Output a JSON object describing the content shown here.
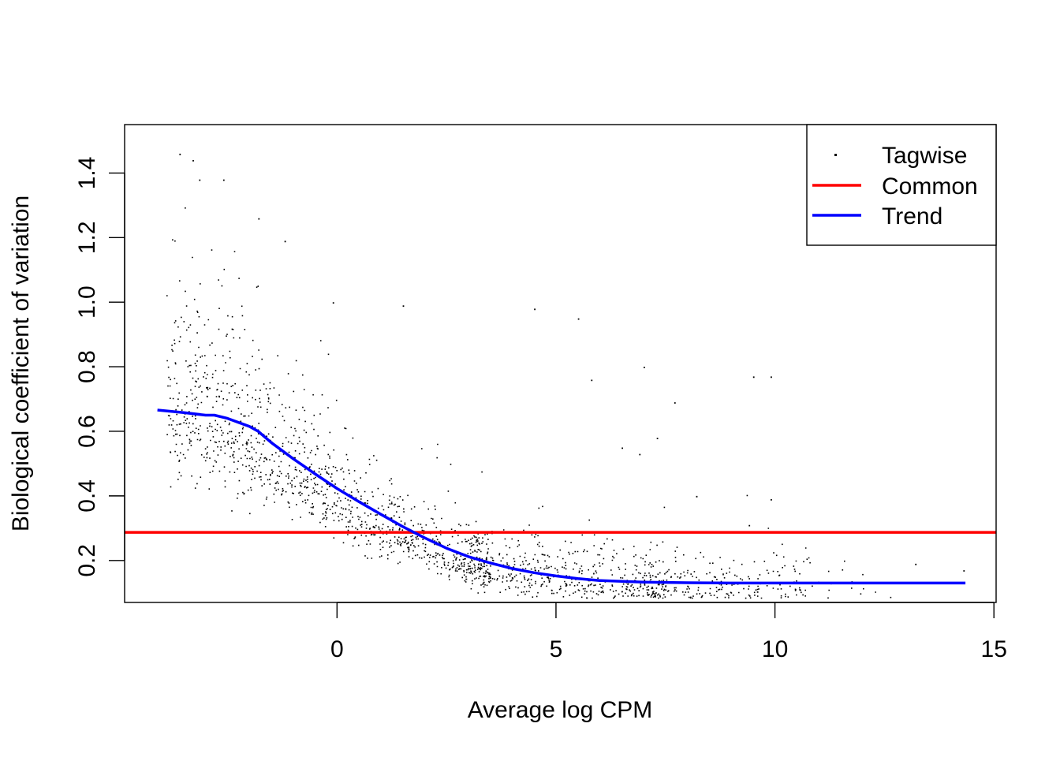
{
  "chart_data": {
    "type": "scatter",
    "title": "",
    "xlabel": "Average log CPM",
    "ylabel": "Biological coefficient of variation",
    "xlim": [
      -4.85,
      15.05
    ],
    "ylim": [
      0.07,
      1.55
    ],
    "x_ticks": [
      0,
      5,
      10,
      15
    ],
    "x_tick_labels": [
      "0",
      "5",
      "10",
      "15"
    ],
    "y_ticks": [
      0.2,
      0.4,
      0.6,
      0.8,
      1.0,
      1.2,
      1.4
    ],
    "y_tick_labels": [
      "0.2",
      "0.4",
      "0.6",
      "0.8",
      "1.0",
      "1.2",
      "1.4"
    ],
    "grid": false,
    "legend": {
      "position": "top-right",
      "entries": [
        {
          "label": "Tagwise",
          "kind": "point",
          "color": "#000000"
        },
        {
          "label": "Common",
          "kind": "line",
          "color": "#ff0000"
        },
        {
          "label": "Trend",
          "kind": "line",
          "color": "#0000ff"
        }
      ]
    },
    "series": [
      {
        "name": "Tagwise",
        "kind": "scatter",
        "color": "#000000",
        "approx_points": 16000,
        "description_values": {
          "x_range": [
            -4.1,
            14.4
          ],
          "center_curve_x": [
            -4.1,
            -3.5,
            -3,
            -2.5,
            -2,
            -1.5,
            -1,
            -0.5,
            0,
            0.5,
            1,
            1.5,
            2,
            2.5,
            3,
            3.5,
            4,
            4.5,
            5,
            5.5,
            6,
            7,
            8,
            9,
            10,
            11,
            12,
            13,
            14.4
          ],
          "center_curve_y": [
            0.66,
            0.65,
            0.62,
            0.59,
            0.55,
            0.5,
            0.46,
            0.42,
            0.38,
            0.34,
            0.3,
            0.27,
            0.24,
            0.21,
            0.19,
            0.17,
            0.155,
            0.145,
            0.14,
            0.132,
            0.128,
            0.122,
            0.12,
            0.118,
            0.117,
            0.117,
            0.118,
            0.12,
            0.125
          ],
          "outliers": [
            {
              "x": -3.6,
              "y": 1.46
            },
            {
              "x": -3.3,
              "y": 1.44
            },
            {
              "x": -3.15,
              "y": 1.38
            },
            {
              "x": -2.6,
              "y": 1.38
            },
            {
              "x": -1.8,
              "y": 1.26
            },
            {
              "x": -1.2,
              "y": 1.19
            },
            {
              "x": -0.1,
              "y": 1.0
            },
            {
              "x": 1.5,
              "y": 0.99
            },
            {
              "x": 4.5,
              "y": 0.98
            },
            {
              "x": 5.5,
              "y": 0.95
            },
            {
              "x": 5.8,
              "y": 0.76
            },
            {
              "x": 7.0,
              "y": 0.8
            },
            {
              "x": 7.7,
              "y": 0.69
            },
            {
              "x": 9.5,
              "y": 0.77
            },
            {
              "x": 9.9,
              "y": 0.77
            },
            {
              "x": 6.5,
              "y": 0.55
            },
            {
              "x": 6.9,
              "y": 0.53
            },
            {
              "x": 7.3,
              "y": 0.58
            },
            {
              "x": 8.2,
              "y": 0.4
            },
            {
              "x": 9.9,
              "y": 0.39
            },
            {
              "x": 9.4,
              "y": 0.31
            },
            {
              "x": 13.2,
              "y": 0.19
            },
            {
              "x": 14.3,
              "y": 0.17
            }
          ]
        }
      },
      {
        "name": "Common",
        "kind": "hline",
        "color": "#ff0000",
        "y": 0.287
      },
      {
        "name": "Trend",
        "kind": "line",
        "color": "#0000ff",
        "x": [
          -4.1,
          -3.5,
          -3.0,
          -2.8,
          -2.5,
          -2.0,
          -1.8,
          -1.5,
          -1.0,
          -0.5,
          0.0,
          0.5,
          1.0,
          1.5,
          2.0,
          2.5,
          3.0,
          3.5,
          4.0,
          4.5,
          5.0,
          5.5,
          6.0,
          7.0,
          8.0,
          9.0,
          10.0,
          11.0,
          12.0,
          13.0,
          14.35
        ],
        "y": [
          0.666,
          0.658,
          0.65,
          0.65,
          0.64,
          0.615,
          0.6,
          0.565,
          0.515,
          0.468,
          0.423,
          0.382,
          0.343,
          0.305,
          0.27,
          0.238,
          0.212,
          0.192,
          0.175,
          0.162,
          0.152,
          0.144,
          0.138,
          0.133,
          0.131,
          0.13,
          0.13,
          0.13,
          0.13,
          0.13,
          0.13
        ]
      }
    ]
  }
}
